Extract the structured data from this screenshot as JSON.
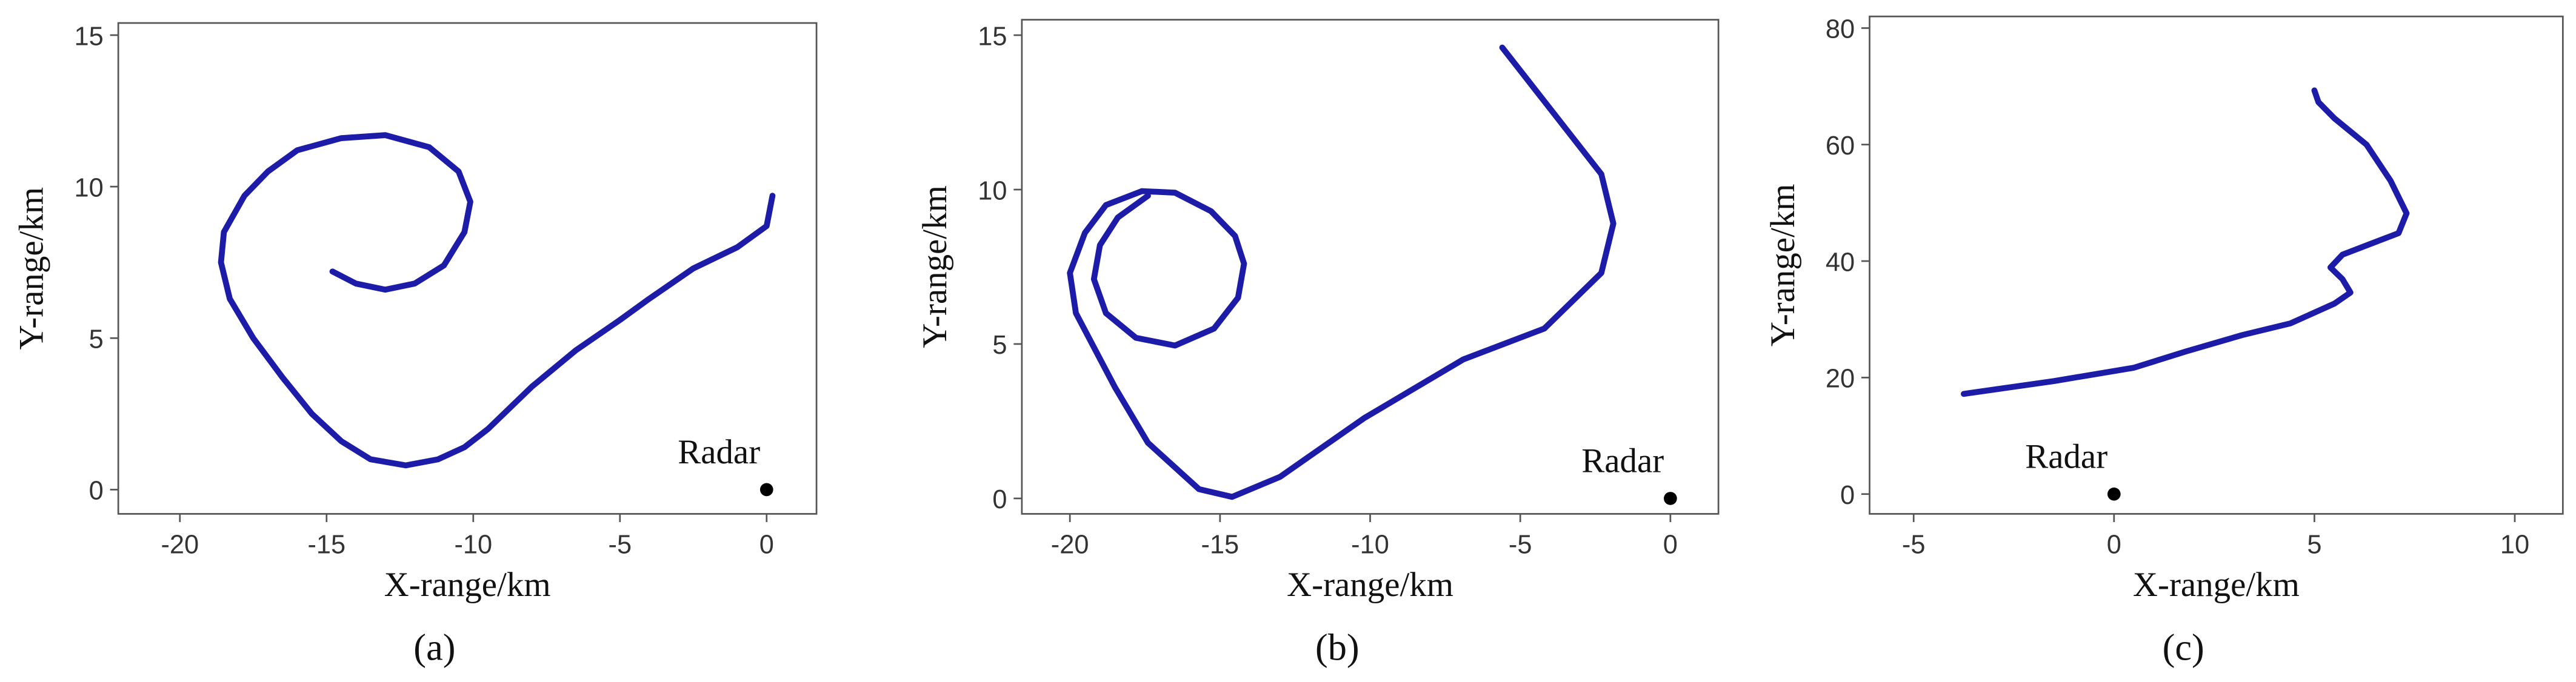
{
  "chart_data": [
    {
      "type": "line",
      "caption": "(a)",
      "x_label": "X-range/km",
      "y_label": "Y-range/km",
      "color": "#1c1ca8",
      "xlim": [
        -22.1,
        1.7
      ],
      "ylim": [
        -0.8,
        15.4
      ],
      "xticks": [
        -20,
        -15,
        -10,
        -5,
        0
      ],
      "yticks": [
        0,
        5,
        10,
        15
      ],
      "x": [
        0.2,
        0,
        -1,
        -2.5,
        -4,
        -5,
        -6.5,
        -8,
        -9.5,
        -10.3,
        -11.2,
        -12.3,
        -13.5,
        -14.5,
        -15.5,
        -16.5,
        -17.5,
        -18.3,
        -18.6,
        -18.5,
        -17.8,
        -17,
        -16,
        -14.5,
        -13,
        -11.5,
        -10.5,
        -10.1,
        -10.3,
        -11,
        -12,
        -13,
        -14,
        -14.8
      ],
      "values": [
        9.7,
        8.7,
        8,
        7.3,
        6.3,
        5.6,
        4.6,
        3.4,
        2,
        1.4,
        1,
        0.8,
        1,
        1.6,
        2.5,
        3.7,
        5,
        6.3,
        7.5,
        8.5,
        9.7,
        10.5,
        11.2,
        11.6,
        11.7,
        11.3,
        10.5,
        9.5,
        8.5,
        7.4,
        6.8,
        6.6,
        6.8,
        7.2
      ],
      "annotation": "Radar",
      "marker": {
        "x": 0,
        "y": 0
      }
    },
    {
      "type": "line",
      "caption": "(b)",
      "x_label": "X-range/km",
      "y_label": "Y-range/km",
      "color": "#1c1ca8",
      "xlim": [
        -21.6,
        1.6
      ],
      "ylim": [
        -0.5,
        15.5
      ],
      "xticks": [
        -20,
        -15,
        -10,
        -5,
        0
      ],
      "yticks": [
        0,
        5,
        10,
        15
      ],
      "x": [
        -5.6,
        -2.3,
        -1.9,
        -2.3,
        -4.2,
        -6.9,
        -10.2,
        -13,
        -14.6,
        -15.7,
        -17.4,
        -18.5,
        -19.8,
        -20,
        -19.5,
        -18.8,
        -17.6,
        -16.5,
        -15.3,
        -14.5,
        -14.2,
        -14.4,
        -15.2,
        -16.5,
        -17.8,
        -18.8,
        -19.2,
        -19,
        -18.4,
        -17.4
      ],
      "values": [
        14.6,
        10.5,
        8.9,
        7.3,
        5.5,
        4.5,
        2.6,
        0.7,
        0.05,
        0.3,
        1.8,
        3.6,
        6,
        7.3,
        8.6,
        9.5,
        9.95,
        9.9,
        9.3,
        8.5,
        7.6,
        6.5,
        5.5,
        4.95,
        5.2,
        6,
        7.1,
        8.2,
        9.1,
        9.8
      ],
      "annotation": "Radar",
      "marker": {
        "x": 0,
        "y": 0
      }
    },
    {
      "type": "line",
      "caption": "(c)",
      "x_label": "X-range/km",
      "y_label": "Y-range/km",
      "color": "#1c1ca8",
      "xlim": [
        -6.1,
        11.2
      ],
      "ylim": [
        -3.4,
        82
      ],
      "xticks": [
        -5,
        0,
        5,
        10
      ],
      "yticks": [
        0,
        20,
        40,
        60,
        80
      ],
      "x": [
        -3.75,
        -1.5,
        0.5,
        1.8,
        3.2,
        4.4,
        5.5,
        5.9,
        5.7,
        5.4,
        5.7,
        7.1,
        7.3,
        6.9,
        6.3,
        5.5,
        5.1,
        5
      ],
      "values": [
        17.2,
        19.4,
        21.7,
        24.5,
        27.3,
        29.3,
        32.7,
        34.6,
        36.9,
        38.9,
        41.1,
        44.8,
        48.2,
        53.8,
        60,
        64.5,
        67.3,
        69.3
      ],
      "annotation": "Radar",
      "marker": {
        "x": 0,
        "y": 0
      }
    }
  ]
}
